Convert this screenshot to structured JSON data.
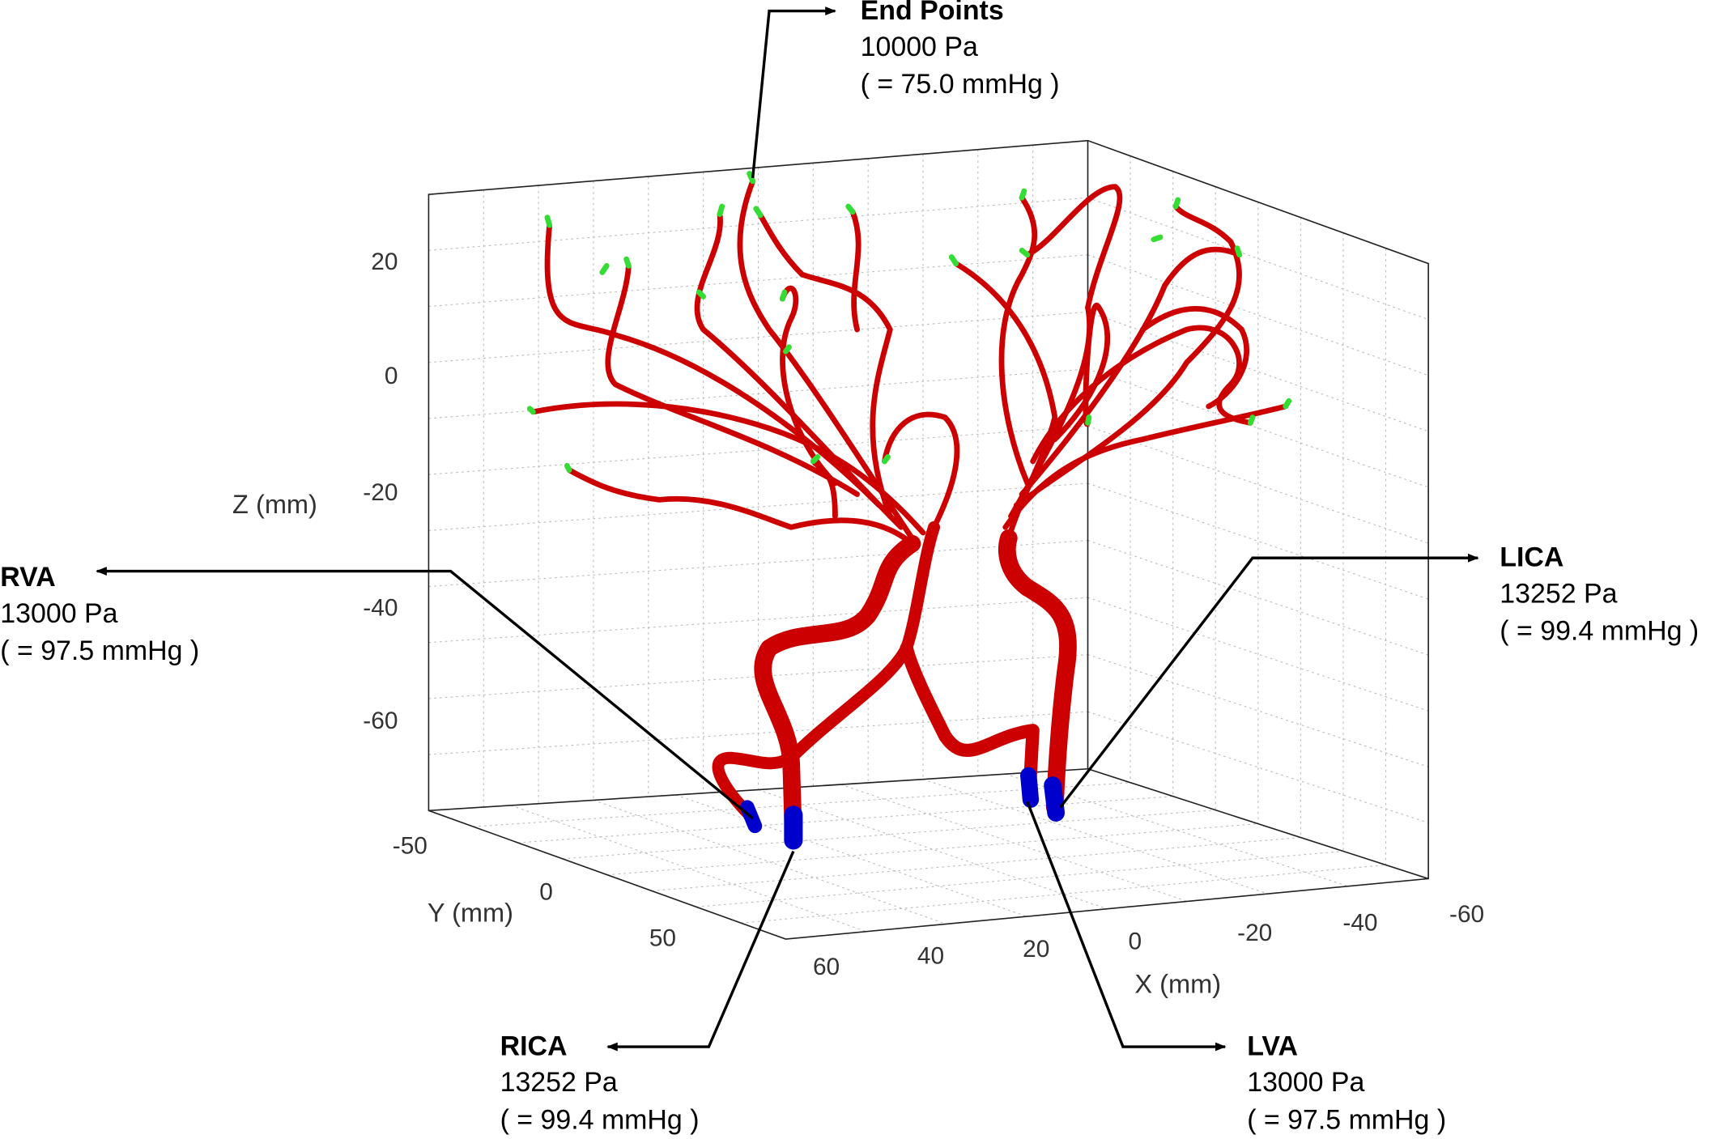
{
  "axes": {
    "z": {
      "label": "Z (mm)",
      "ticks": [
        20,
        0,
        -20,
        -40,
        -60
      ]
    },
    "y": {
      "label": "Y (mm)",
      "ticks": [
        -50,
        0,
        50
      ]
    },
    "x": {
      "label": "X (mm)",
      "ticks": [
        60,
        40,
        20,
        0,
        -20,
        -40,
        -60
      ]
    }
  },
  "annotations": [
    {
      "name": "End Points",
      "pressure": "10000 Pa",
      "mmhg": "( = 75.0 mmHg )"
    },
    {
      "name": "RVA",
      "pressure": "13000 Pa",
      "mmhg": "( = 97.5 mmHg )"
    },
    {
      "name": "LICA",
      "pressure": "13252 Pa",
      "mmhg": "( = 99.4 mmHg )"
    },
    {
      "name": "RICA",
      "pressure": "13252 Pa",
      "mmhg": "( = 99.4 mmHg )"
    },
    {
      "name": "LVA",
      "pressure": "13000 Pa",
      "mmhg": "( = 97.5 mmHg )"
    }
  ]
}
